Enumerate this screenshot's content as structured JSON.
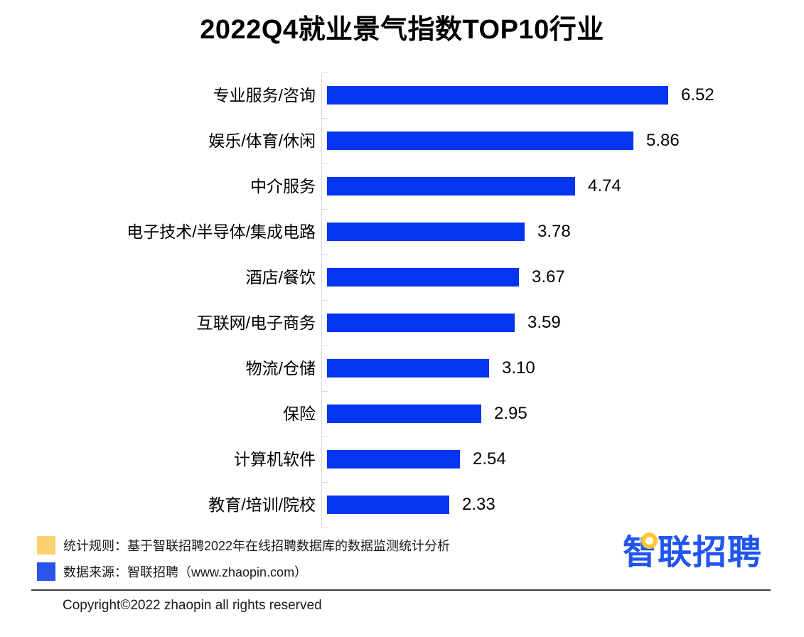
{
  "page": {
    "title": "2022Q4就业景气指数TOP10行业"
  },
  "chart_data": {
    "type": "bar",
    "orientation": "horizontal",
    "title": "2022Q4就业景气指数TOP10行业",
    "categories": [
      "专业服务/咨询",
      "娱乐/体育/休闲",
      "中介服务",
      "电子技术/半导体/集成电路",
      "酒店/餐饮",
      "互联网/电子商务",
      "物流/仓储",
      "保险",
      "计算机软件",
      "教育/培训/院校"
    ],
    "values": [
      6.52,
      5.86,
      4.74,
      3.78,
      3.67,
      3.59,
      3.1,
      2.95,
      2.54,
      2.33
    ],
    "value_labels": [
      "6.52",
      "5.86",
      "4.74",
      "3.78",
      "3.67",
      "3.59",
      "3.10",
      "2.95",
      "2.54",
      "2.33"
    ],
    "xlim": [
      0,
      6.85
    ],
    "bar_color": "#0435f0",
    "axis_color": "#d9d9d9",
    "grid": false,
    "data_labels": true,
    "legend_position": "none"
  },
  "footer": {
    "legend": [
      {
        "swatch_color": "#fad170",
        "label": "统计规则：基于智联招聘2022年在线招聘数据库的数据监测统计分析"
      },
      {
        "swatch_color": "#2b55ea",
        "label": "数据来源：智联招聘（www.zhaopin.com）"
      }
    ],
    "logo": {
      "text": "智联招聘",
      "color": "#2155f0",
      "accent_color": "#ffc82e"
    },
    "copyright": "Copyright©2022 zhaopin all rights reserved"
  }
}
